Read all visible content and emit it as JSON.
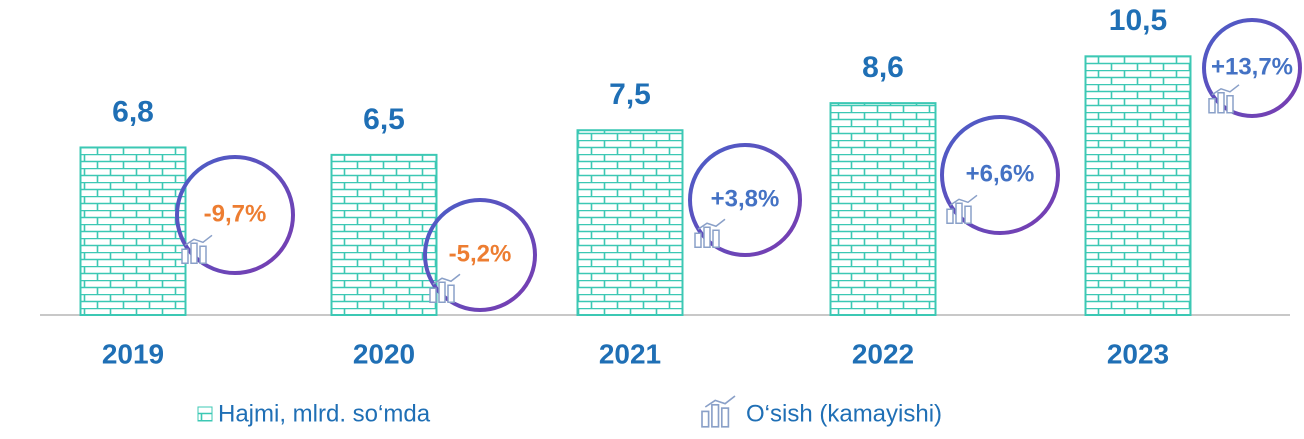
{
  "chart_data": {
    "type": "bar",
    "categories": [
      "2019",
      "2020",
      "2021",
      "2022",
      "2023"
    ],
    "series": [
      {
        "name": "Hajmi, mlrd. so‘mda",
        "color": "#3cc8b4",
        "values": [
          6.8,
          6.5,
          7.5,
          8.6,
          10.5
        ],
        "value_labels": [
          "6,8",
          "6,5",
          "7,5",
          "8,6",
          "10,5"
        ]
      },
      {
        "name": "O‘sish (kamayishi)",
        "color": "#4472c4",
        "negative_color": "#ed7d31",
        "values": [
          -9.7,
          -5.2,
          3.8,
          6.6,
          13.7
        ],
        "value_labels": [
          "-9,7%",
          "-5,2%",
          "+3,8%",
          "+6,6%",
          "+13,7%"
        ]
      }
    ],
    "ylim": [
      0,
      11
    ]
  }
}
